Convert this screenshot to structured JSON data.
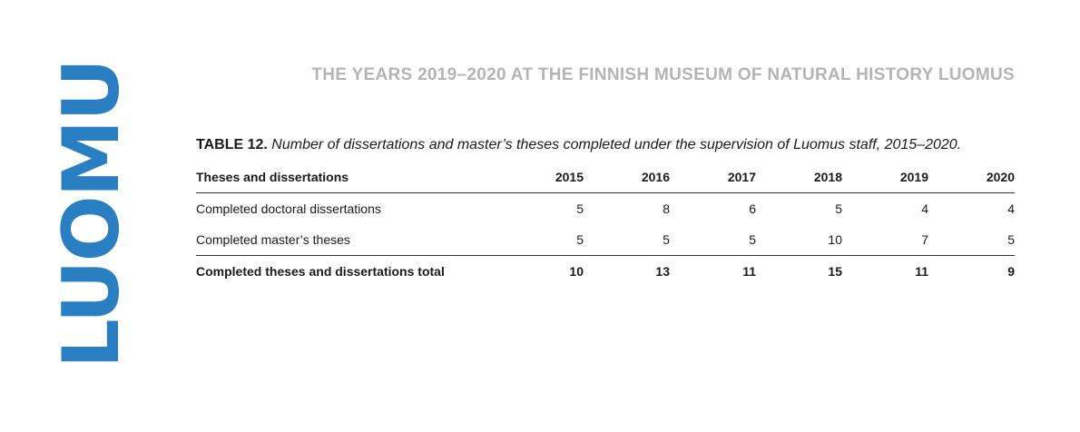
{
  "logo": {
    "text": "LUOMUS",
    "color": "#2a7fc3"
  },
  "header": {
    "title": "THE YEARS 2019–2020 AT THE FINNISH MUSEUM OF NATURAL HISTORY LUOMUS"
  },
  "caption": {
    "label": "TABLE 12.",
    "text": "Number of dissertations and master’s theses completed under the supervision of Luomus staff, 2015–2020."
  },
  "table": {
    "columns": [
      "Theses and dissertations",
      "2015",
      "2016",
      "2017",
      "2018",
      "2019",
      "2020"
    ],
    "rows": [
      {
        "label": "Completed doctoral dissertations",
        "values": [
          "5",
          "8",
          "6",
          "5",
          "4",
          "4"
        ]
      },
      {
        "label": "Completed master’s theses",
        "values": [
          "5",
          "5",
          "5",
          "10",
          "7",
          "5"
        ]
      }
    ],
    "total": {
      "label": "Completed theses and dissertations total",
      "values": [
        "10",
        "13",
        "11",
        "15",
        "11",
        "9"
      ]
    }
  }
}
